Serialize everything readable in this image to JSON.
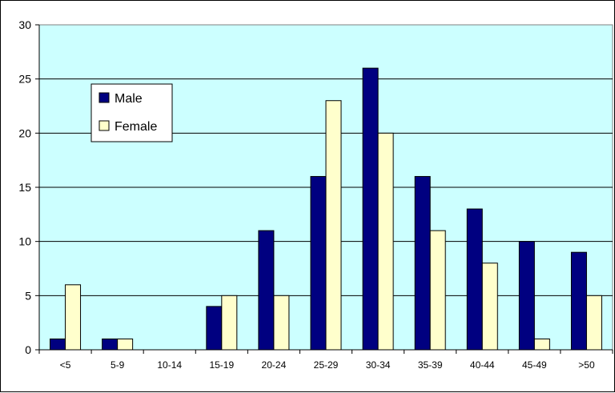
{
  "chart_data": {
    "type": "bar",
    "categories": [
      "<5",
      "5-9",
      "10-14",
      "15-19",
      "20-24",
      "25-29",
      "30-34",
      "35-39",
      "40-44",
      "45-49",
      ">50"
    ],
    "series": [
      {
        "name": "Male",
        "color": "#000080",
        "values": [
          1,
          1,
          0,
          4,
          11,
          16,
          26,
          16,
          13,
          10,
          9
        ]
      },
      {
        "name": "Female",
        "color": "#FFFFCC",
        "values": [
          6,
          1,
          0,
          5,
          5,
          23,
          20,
          11,
          8,
          1,
          5
        ]
      }
    ],
    "ylim": [
      0,
      30
    ],
    "yticks": [
      0,
      5,
      10,
      15,
      20,
      25,
      30
    ],
    "grid": true,
    "legend_position": "top-left",
    "plot_background": "#CCFFFF"
  }
}
